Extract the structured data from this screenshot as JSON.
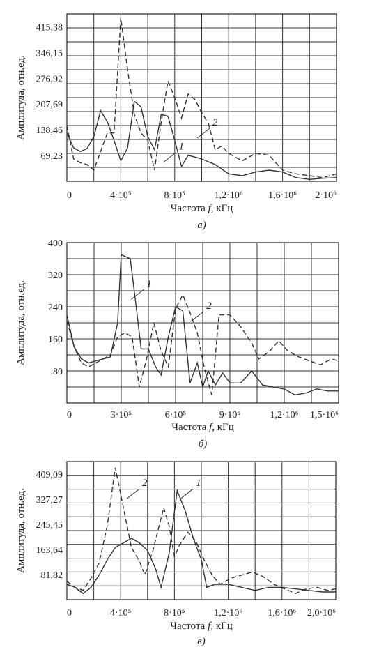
{
  "chart_data": [
    {
      "type": "line",
      "subplot_label": "а)",
      "xlabel_prefix": "Частота ",
      "xlabel_var": "f",
      "xlabel_suffix": ", кГц",
      "ylabel": "Амплитуда, отн.ед.",
      "xlim": [
        0,
        2000000
      ],
      "ylim": [
        0,
        450
      ],
      "x_ticks": [
        0,
        400000,
        800000,
        1200000,
        1600000,
        2000000
      ],
      "x_tick_labels": [
        "0",
        "4·10⁵",
        "8·10⁵",
        "1,2·10⁶",
        "1,6·10⁶",
        "2·10⁶"
      ],
      "y_ticks": [
        69.23,
        138.46,
        207.69,
        276.92,
        346.15,
        415.38
      ],
      "y_tick_labels": [
        "69,23",
        "138,46",
        "207,69",
        "276,92",
        "346,15",
        "415,38"
      ],
      "grid": true,
      "series": [
        {
          "name": "1",
          "style": "solid",
          "x": [
            0,
            50000,
            100000,
            150000,
            200000,
            250000,
            300000,
            350000,
            400000,
            450000,
            500000,
            550000,
            600000,
            650000,
            700000,
            750000,
            800000,
            850000,
            900000,
            950000,
            1000000,
            1100000,
            1200000,
            1300000,
            1400000,
            1500000,
            1600000,
            1700000,
            1800000,
            1900000,
            2000000
          ],
          "y": [
            130,
            90,
            80,
            88,
            120,
            190,
            160,
            110,
            55,
            90,
            215,
            200,
            120,
            85,
            180,
            175,
            110,
            40,
            70,
            65,
            60,
            45,
            20,
            15,
            25,
            30,
            25,
            10,
            5,
            8,
            10
          ]
        },
        {
          "name": "2",
          "style": "dashed",
          "x": [
            0,
            50000,
            100000,
            150000,
            200000,
            250000,
            300000,
            350000,
            400000,
            450000,
            500000,
            550000,
            600000,
            650000,
            700000,
            750000,
            800000,
            850000,
            900000,
            950000,
            1000000,
            1050000,
            1100000,
            1150000,
            1200000,
            1300000,
            1400000,
            1500000,
            1600000,
            1700000,
            1800000,
            1900000,
            2000000
          ],
          "y": [
            150,
            60,
            50,
            45,
            30,
            80,
            130,
            130,
            440,
            300,
            180,
            130,
            110,
            30,
            160,
            270,
            225,
            170,
            235,
            220,
            185,
            155,
            85,
            95,
            75,
            55,
            75,
            70,
            30,
            20,
            15,
            10,
            20
          ]
        }
      ],
      "curve_labels": [
        {
          "text": "1",
          "x": 830000,
          "y": 85
        },
        {
          "text": "2",
          "x": 1080000,
          "y": 150
        }
      ]
    },
    {
      "type": "line",
      "subplot_label": "б)",
      "xlabel_prefix": "Частота ",
      "xlabel_var": "f",
      "xlabel_suffix": ", кГц",
      "ylabel": "Амплитуда, отн.ед.",
      "xlim": [
        0,
        1500000
      ],
      "ylim": [
        0,
        400
      ],
      "x_ticks": [
        0,
        300000,
        600000,
        900000,
        1200000,
        1500000
      ],
      "x_tick_labels": [
        "0",
        "3·10⁵",
        "6·10⁵",
        "9·10⁵",
        "1,2·10⁶",
        "1,5·10⁶"
      ],
      "y_ticks": [
        80,
        160,
        240,
        320,
        400
      ],
      "y_tick_labels": [
        "80",
        "160",
        "240",
        "320",
        "400"
      ],
      "grid": true,
      "series": [
        {
          "name": "1",
          "style": "solid",
          "x": [
            0,
            40000,
            80000,
            120000,
            160000,
            200000,
            240000,
            280000,
            300000,
            350000,
            380000,
            410000,
            450000,
            490000,
            520000,
            560000,
            600000,
            640000,
            680000,
            720000,
            750000,
            780000,
            820000,
            860000,
            900000,
            960000,
            1020000,
            1080000,
            1140000,
            1200000,
            1260000,
            1320000,
            1380000,
            1440000,
            1500000
          ],
          "y": [
            220,
            140,
            110,
            100,
            105,
            110,
            115,
            200,
            370,
            360,
            250,
            135,
            135,
            90,
            70,
            165,
            240,
            230,
            50,
            100,
            40,
            80,
            45,
            75,
            50,
            50,
            80,
            45,
            40,
            35,
            20,
            25,
            35,
            30,
            30
          ]
        },
        {
          "name": "2",
          "style": "dashed",
          "x": [
            0,
            40000,
            80000,
            120000,
            160000,
            200000,
            240000,
            280000,
            320000,
            360000,
            400000,
            440000,
            480000,
            520000,
            560000,
            600000,
            640000,
            680000,
            720000,
            760000,
            800000,
            840000,
            900000,
            960000,
            1020000,
            1060000,
            1120000,
            1170000,
            1220000,
            1280000,
            1340000,
            1400000,
            1460000,
            1500000
          ],
          "y": [
            205,
            140,
            100,
            90,
            100,
            110,
            120,
            165,
            175,
            165,
            40,
            110,
            200,
            130,
            90,
            235,
            270,
            225,
            175,
            85,
            20,
            220,
            220,
            190,
            150,
            110,
            130,
            155,
            130,
            115,
            105,
            95,
            110,
            105
          ]
        }
      ],
      "curve_labels": [
        {
          "text": "1",
          "x": 440000,
          "y": 290
        },
        {
          "text": "2",
          "x": 770000,
          "y": 235
        }
      ]
    },
    {
      "type": "line",
      "subplot_label": "в)",
      "xlabel_prefix": "Частота ",
      "xlabel_var": "f",
      "xlabel_suffix": ", кГц",
      "ylabel": "Амплитуда, отн.ед.",
      "xlim": [
        0,
        2000000
      ],
      "ylim": [
        0,
        450
      ],
      "x_ticks": [
        0,
        400000,
        800000,
        1200000,
        1600000,
        2000000
      ],
      "x_tick_labels": [
        "0",
        "4·10⁵",
        "8·10⁵",
        "1,2·10⁶",
        "1,6·10⁶",
        "2,0·10⁶"
      ],
      "y_ticks": [
        81.82,
        163.64,
        245.45,
        327.27,
        409.09
      ],
      "y_tick_labels": [
        "81,82",
        "163,64",
        "245,45",
        "327,27",
        "409,09"
      ],
      "grid": true,
      "series": [
        {
          "name": "1",
          "style": "solid",
          "x": [
            0,
            60000,
            120000,
            180000,
            240000,
            300000,
            360000,
            420000,
            480000,
            540000,
            600000,
            660000,
            700000,
            760000,
            820000,
            880000,
            940000,
            1000000,
            1040000,
            1100000,
            1200000,
            1300000,
            1400000,
            1500000,
            1600000,
            1700000,
            1800000,
            1900000,
            2000000
          ],
          "y": [
            50,
            40,
            20,
            40,
            80,
            130,
            170,
            185,
            200,
            185,
            160,
            100,
            40,
            150,
            355,
            290,
            200,
            130,
            40,
            50,
            50,
            40,
            30,
            40,
            40,
            35,
            30,
            25,
            25
          ]
        },
        {
          "name": "2",
          "style": "dashed",
          "x": [
            0,
            60000,
            120000,
            180000,
            240000,
            300000,
            360000,
            420000,
            480000,
            540000,
            580000,
            640000,
            720000,
            760000,
            800000,
            840000,
            900000,
            960000,
            1020000,
            1080000,
            1140000,
            1220000,
            1300000,
            1380000,
            1460000,
            1540000,
            1620000,
            1700000,
            1780000,
            1860000,
            1940000,
            2000000
          ],
          "y": [
            60,
            40,
            30,
            70,
            120,
            240,
            430,
            300,
            170,
            125,
            80,
            160,
            300,
            240,
            140,
            180,
            220,
            190,
            130,
            80,
            50,
            70,
            80,
            90,
            75,
            50,
            35,
            20,
            35,
            40,
            30,
            35
          ]
        }
      ],
      "curve_labels": [
        {
          "text": "2",
          "x": 560000,
          "y": 370
        },
        {
          "text": "1",
          "x": 960000,
          "y": 370
        }
      ]
    }
  ]
}
